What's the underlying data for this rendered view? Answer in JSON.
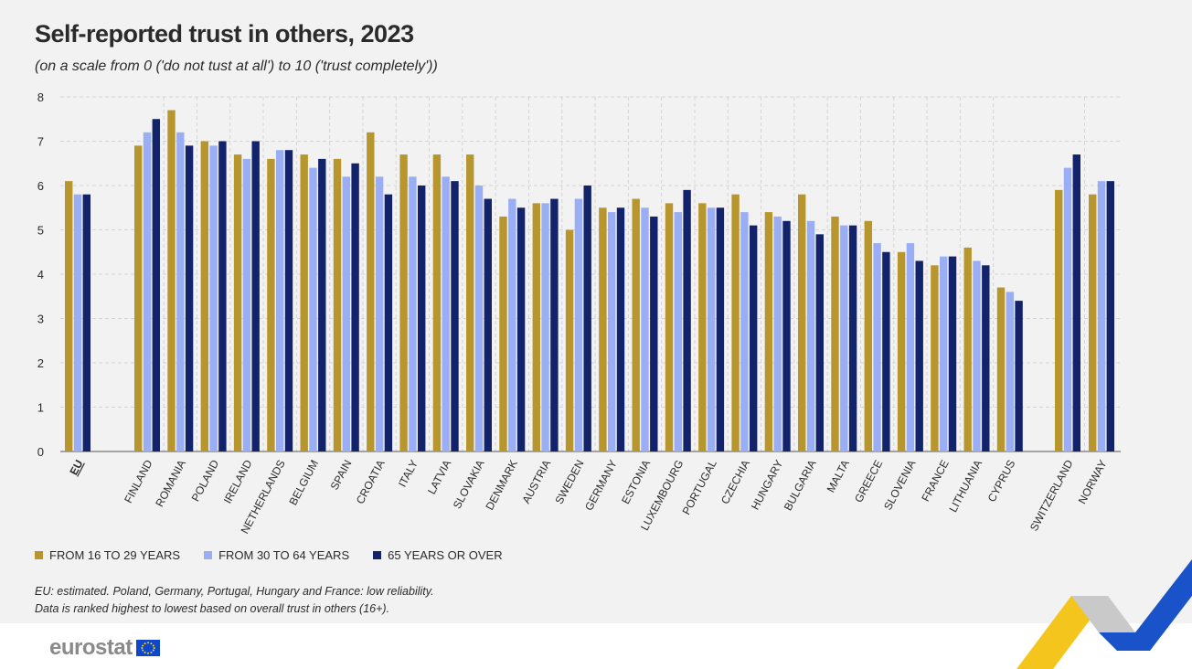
{
  "title": "Self-reported trust in others, 2023",
  "subtitle": "(on a scale from 0 ('do not tust at all') to 10 ('trust completely'))",
  "colors": {
    "y16_29": "#b8962e",
    "y30_64": "#9aaef5",
    "y65": "#13236b",
    "grid": "#d4d4d4",
    "axis": "#555555",
    "text": "#2b2b2b"
  },
  "legend": [
    {
      "label": "FROM 16 TO 29 YEARS",
      "color": "#b8962e"
    },
    {
      "label": "FROM 30 TO 64 YEARS",
      "color": "#9aaef5"
    },
    {
      "label": "65 YEARS OR OVER",
      "color": "#13236b"
    }
  ],
  "notes": [
    "EU: estimated. Poland, Germany, Portugal, Hungary and France: low reliability.",
    "Data is ranked highest to lowest based on overall trust in others (16+)."
  ],
  "logo": {
    "text": "eurostat",
    "icon": "eu-flag-icon"
  },
  "chart_data": {
    "type": "bar",
    "title": "Self-reported trust in others, 2023",
    "xlabel": "",
    "ylabel": "",
    "ylim": [
      0,
      8
    ],
    "yticks": [
      0,
      1,
      2,
      3,
      4,
      5,
      6,
      7,
      8
    ],
    "grid": true,
    "legend_position": "bottom-left",
    "categories": [
      "EU",
      "FINLAND",
      "ROMANIA",
      "POLAND",
      "IRELAND",
      "NETHERLANDS",
      "BELGIUM",
      "SPAIN",
      "CROATIA",
      "ITALY",
      "LATVIA",
      "SLOVAKIA",
      "DENMARK",
      "AUSTRIA",
      "SWEDEN",
      "GERMANY",
      "ESTONIA",
      "LUXEMBOURG",
      "PORTUGAL",
      "CZECHIA",
      "HUNGARY",
      "BULGARIA",
      "MALTA",
      "GREECE",
      "SLOVENIA",
      "FRANCE",
      "LITHUANIA",
      "CYPRUS",
      "SWITZERLAND",
      "NORWAY"
    ],
    "series": [
      {
        "name": "FROM 16 TO 29 YEARS",
        "values": [
          6.1,
          6.9,
          7.7,
          7.0,
          6.7,
          6.6,
          6.7,
          6.6,
          7.2,
          6.7,
          6.7,
          6.7,
          5.3,
          5.6,
          5.0,
          5.5,
          5.7,
          5.6,
          5.6,
          5.8,
          5.4,
          5.8,
          5.3,
          5.2,
          4.5,
          4.2,
          4.6,
          3.7,
          5.9,
          5.8
        ]
      },
      {
        "name": "FROM 30 TO 64 YEARS",
        "values": [
          5.8,
          7.2,
          7.2,
          6.9,
          6.6,
          6.8,
          6.4,
          6.2,
          6.2,
          6.2,
          6.2,
          6.0,
          5.7,
          5.6,
          5.7,
          5.4,
          5.5,
          5.4,
          5.5,
          5.4,
          5.3,
          5.2,
          5.1,
          4.7,
          4.7,
          4.4,
          4.3,
          3.6,
          6.4,
          6.1
        ]
      },
      {
        "name": "65 YEARS OR OVER",
        "values": [
          5.8,
          7.5,
          6.9,
          7.0,
          7.0,
          6.8,
          6.6,
          6.5,
          5.8,
          6.0,
          6.1,
          5.7,
          5.5,
          5.7,
          6.0,
          5.5,
          5.3,
          5.9,
          5.5,
          5.1,
          5.2,
          4.9,
          5.1,
          4.5,
          4.3,
          4.4,
          4.2,
          3.4,
          6.7,
          6.1
        ]
      }
    ]
  }
}
